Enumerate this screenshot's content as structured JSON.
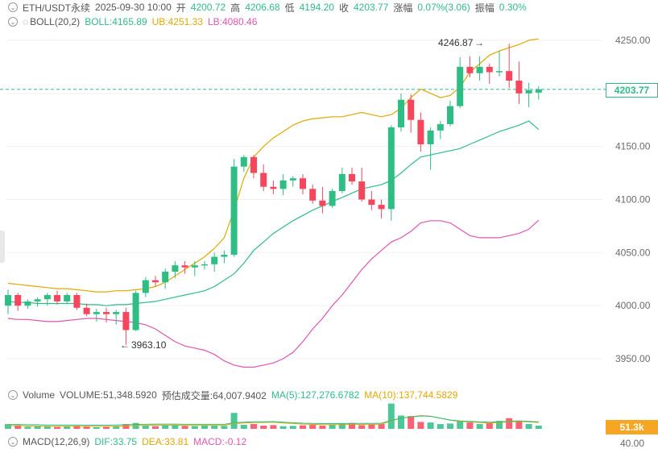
{
  "header": {
    "symbol": "ETH/USDT永续",
    "datetime": "2025-09-30 10:00",
    "open_label": "开",
    "open_value": "4200.72",
    "high_label": "高",
    "high_value": "4206.68",
    "low_label": "低",
    "low_value": "4194.20",
    "close_label": "收",
    "close_value": "4203.77",
    "change_label": "涨幅",
    "change_value": "0.07%(3.06)",
    "amplitude_label": "振幅",
    "amplitude_value": "0.30%"
  },
  "boll": {
    "name": "BOLL(20,2)",
    "boll_label": "BOLL:4165.89",
    "ub_label": "UB:4251.33",
    "lb_label": "LB:4080.46"
  },
  "volume": {
    "name": "Volume",
    "volume_label": "VOLUME:51,348.5920",
    "est_label": "预估成交量:64,007.9402",
    "ma5_label": "MA(5):127,276.6782",
    "ma10_label": "MA(10):137,744.5829",
    "tag": "51.3k"
  },
  "macd": {
    "name": "MACD(12,26,9)",
    "dif_label": "DIF:33.75",
    "dea_label": "DEA:33.81",
    "macd_label": "MACD:-0.12",
    "axis_partial": "40.00"
  },
  "price_tag": "4203.77",
  "annotations": {
    "high": "4246.87",
    "low": "3963.10"
  },
  "colors": {
    "up": "#2ebd85",
    "down": "#f6465d",
    "ub": "#e0a800",
    "boll": "#2ebd85",
    "lb": "#e055b0"
  },
  "chart_data": {
    "type": "candlestick",
    "title": "ETH/USDT永续",
    "y_ticks": [
      "4250.00",
      "4200.00",
      "4150.00",
      "4100.00",
      "4050.00",
      "4000.00",
      "3950.00"
    ],
    "y_tick_values": [
      4250,
      4200,
      4150,
      4100,
      4050,
      4000,
      3950
    ],
    "ylim": [
      3920,
      4275
    ],
    "current_price": 4203.77,
    "candles": [
      [
        4000,
        4015,
        3992,
        4010
      ],
      [
        4010,
        4012,
        3995,
        4000
      ],
      [
        4000,
        4006,
        3997,
        4004
      ],
      [
        4004,
        4008,
        3999,
        4006
      ],
      [
        4006,
        4012,
        4000,
        4010
      ],
      [
        4010,
        4014,
        4001,
        4004
      ],
      [
        4004,
        4012,
        4002,
        4010
      ],
      [
        4010,
        4012,
        3996,
        3998
      ],
      [
        3998,
        4002,
        3990,
        3992
      ],
      [
        3992,
        3997,
        3985,
        3994
      ],
      [
        3994,
        3998,
        3984,
        3992
      ],
      [
        3992,
        3996,
        3982,
        3994
      ],
      [
        3994,
        3998,
        3963.1,
        3977
      ],
      [
        3977,
        4014,
        3976,
        4012
      ],
      [
        4012,
        4027,
        4008,
        4024
      ],
      [
        4024,
        4028,
        4018,
        4022
      ],
      [
        4022,
        4035,
        4016,
        4032
      ],
      [
        4032,
        4042,
        4026,
        4038
      ],
      [
        4038,
        4042,
        4030,
        4036
      ],
      [
        4036,
        4042,
        4028,
        4038
      ],
      [
        4038,
        4042,
        4034,
        4039
      ],
      [
        4039,
        4050,
        4032,
        4046
      ],
      [
        4046,
        4052,
        4040,
        4048
      ],
      [
        4048,
        4138,
        4046,
        4131
      ],
      [
        4131,
        4142,
        4126,
        4140
      ],
      [
        4140,
        4142,
        4120,
        4125
      ],
      [
        4125,
        4133,
        4108,
        4112
      ],
      [
        4112,
        4118,
        4105,
        4110
      ],
      [
        4110,
        4124,
        4104,
        4118
      ],
      [
        4118,
        4122,
        4112,
        4120
      ],
      [
        4120,
        4124,
        4105,
        4110
      ],
      [
        4110,
        4114,
        4096,
        4099
      ],
      [
        4099,
        4112,
        4087,
        4094
      ],
      [
        4094,
        4110,
        4092,
        4108
      ],
      [
        4108,
        4130,
        4106,
        4124
      ],
      [
        4124,
        4130,
        4114,
        4117
      ],
      [
        4117,
        4130,
        4098,
        4100
      ],
      [
        4100,
        4108,
        4090,
        4095
      ],
      [
        4095,
        4100,
        4082,
        4091
      ],
      [
        4091,
        4170,
        4080,
        4168
      ],
      [
        4168,
        4200,
        4164,
        4194
      ],
      [
        4194,
        4199,
        4163,
        4175
      ],
      [
        4175,
        4182,
        4145,
        4152
      ],
      [
        4152,
        4168,
        4128,
        4165
      ],
      [
        4165,
        4174,
        4157,
        4171
      ],
      [
        4171,
        4193,
        4169,
        4188
      ],
      [
        4188,
        4234,
        4186,
        4225
      ],
      [
        4225,
        4235,
        4215,
        4219
      ],
      [
        4219,
        4235,
        4212,
        4225
      ],
      [
        4225,
        4228,
        4209,
        4220
      ],
      [
        4220,
        4240,
        4216,
        4221
      ],
      [
        4221,
        4246.87,
        4205,
        4212
      ],
      [
        4212,
        4230,
        4190,
        4200
      ],
      [
        4200,
        4210,
        4187,
        4203
      ],
      [
        4200.72,
        4206.68,
        4194.2,
        4203.77
      ]
    ],
    "boll_series": {
      "ub": [
        4021,
        4020,
        4019,
        4018,
        4017,
        4016,
        4016,
        4015,
        4014,
        4013,
        4013,
        4014,
        4014,
        4015,
        4016,
        4018,
        4022,
        4028,
        4034,
        4040,
        4046,
        4054,
        4064,
        4090,
        4120,
        4140,
        4150,
        4158,
        4164,
        4170,
        4174,
        4176,
        4177,
        4178,
        4178,
        4180,
        4182,
        4180,
        4178,
        4180,
        4186,
        4196,
        4204,
        4200,
        4196,
        4198,
        4206,
        4220,
        4228,
        4236,
        4240,
        4243,
        4246,
        4250,
        4251.33
      ],
      "mid": [
        4004,
        4003,
        4003,
        4002,
        4002,
        4002,
        4002,
        4002,
        4001,
        4001,
        4000,
        4001,
        4001,
        4002,
        4003,
        4004,
        4006,
        4008,
        4010,
        4012,
        4014,
        4018,
        4024,
        4030,
        4040,
        4052,
        4060,
        4068,
        4074,
        4080,
        4085,
        4090,
        4094,
        4098,
        4102,
        4106,
        4110,
        4112,
        4114,
        4118,
        4125,
        4133,
        4140,
        4142,
        4144,
        4146,
        4148,
        4152,
        4156,
        4160,
        4164,
        4167,
        4170,
        4174,
        4165.89
      ],
      "lb": [
        3988,
        3987,
        3987,
        3986,
        3985,
        3985,
        3986,
        3987,
        3988,
        3988,
        3987,
        3986,
        3985,
        3984,
        3982,
        3978,
        3972,
        3966,
        3962,
        3960,
        3958,
        3954,
        3948,
        3944,
        3942,
        3942,
        3944,
        3946,
        3950,
        3956,
        3966,
        3978,
        3988,
        4000,
        4010,
        4022,
        4034,
        4044,
        4052,
        4060,
        4064,
        4070,
        4078,
        4080,
        4080,
        4078,
        4072,
        4066,
        4064,
        4064,
        4064,
        4066,
        4068,
        4072,
        4080.46
      ]
    },
    "volume_values": [
      18,
      14,
      8,
      9,
      10,
      7,
      9,
      12,
      8,
      6,
      7,
      9,
      18,
      22,
      12,
      10,
      13,
      15,
      11,
      10,
      14,
      12,
      11,
      60,
      15,
      18,
      12,
      14,
      10,
      11,
      13,
      15,
      12,
      16,
      18,
      22,
      14,
      16,
      18,
      95,
      50,
      48,
      26,
      24,
      18,
      20,
      30,
      24,
      18,
      22,
      30,
      40,
      28,
      18,
      12
    ],
    "volume_ma": [
      12,
      12,
      11,
      11,
      10,
      10,
      10,
      10,
      9,
      9,
      9,
      10,
      11,
      12,
      13,
      14,
      14,
      14,
      13,
      13,
      13,
      13,
      13,
      20,
      22,
      24,
      24,
      25,
      22,
      20,
      18,
      17,
      16,
      16,
      16,
      17,
      17,
      17,
      18,
      30,
      40,
      45,
      50,
      48,
      40,
      32,
      28,
      26,
      24,
      22,
      24,
      26,
      28,
      26,
      24
    ]
  }
}
